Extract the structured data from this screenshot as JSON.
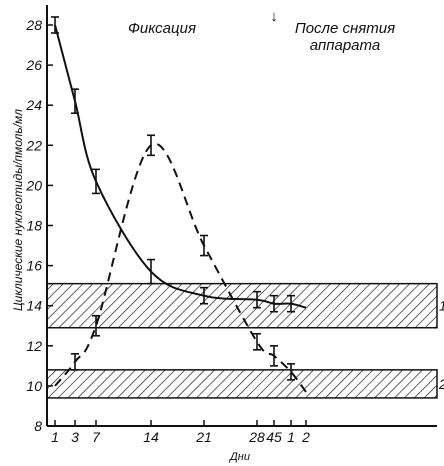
{
  "chart_data": {
    "type": "line",
    "ylabel": "Циклические нуклеотиды/пмоль/мл",
    "xlabel": "Дни",
    "ylim": [
      8,
      28.5
    ],
    "y_ticks": [
      8,
      10,
      12,
      14,
      16,
      18,
      20,
      22,
      24,
      26,
      28
    ],
    "x_tick_labels": [
      "1",
      "3",
      "7",
      "14",
      "21",
      "28",
      "45",
      "1",
      "2"
    ],
    "annotation_left": "Фиксация",
    "annotation_right": "После снятия аппарата",
    "arrow_glyph": "↓",
    "bands": [
      {
        "label": "1",
        "y_range": [
          12.9,
          15.1
        ]
      },
      {
        "label": "2",
        "y_range": [
          9.4,
          10.8
        ]
      }
    ],
    "series": [
      {
        "line_style": "solid",
        "points": [
          {
            "x_label": "1",
            "y": 28,
            "err": 0.4
          },
          {
            "x_label": "3",
            "y": 24.2,
            "err": 0.6
          },
          {
            "x_label": "7",
            "y": 20.2,
            "err": 0.6
          },
          {
            "x_label": "14",
            "y": 15.7,
            "err": 0.6
          },
          {
            "x_label": "21",
            "y": 14.5,
            "err": 0.4
          },
          {
            "x_label": "28",
            "y": 14.3,
            "err": 0.4
          },
          {
            "x_label": "45",
            "y": 14.1,
            "err": 0.4
          },
          {
            "x_label": "1",
            "y": 14.1,
            "err": 0.4
          },
          {
            "x_label": "2",
            "y": 13.9,
            "err": 0
          }
        ]
      },
      {
        "line_style": "dashed",
        "points": [
          {
            "x_label": "1",
            "y": 10,
            "err": 0
          },
          {
            "x_label": "3",
            "y": 11.2,
            "err": 0.4
          },
          {
            "x_label": "7",
            "y": 13,
            "err": 0.5
          },
          {
            "x_label": "14",
            "y": 22,
            "err": 0.5
          },
          {
            "x_label": "21",
            "y": 17,
            "err": 0.5
          },
          {
            "x_label": "28",
            "y": 12.2,
            "err": 0.4
          },
          {
            "x_label": "45",
            "y": 11.5,
            "err": 0.5
          },
          {
            "x_label": "1",
            "y": 10.7,
            "err": 0.4
          },
          {
            "x_label": "2",
            "y": 9.7,
            "err": 0
          }
        ]
      }
    ]
  }
}
